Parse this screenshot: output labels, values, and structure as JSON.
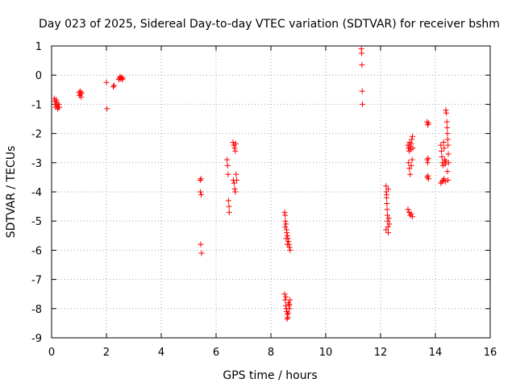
{
  "chart_data": {
    "type": "scatter",
    "title": "Day 023 of 2025, Sidereal Day-to-day VTEC variation (SDTVAR) for receiver bshm",
    "xlabel": "GPS time / hours",
    "ylabel": "SDTVAR / TECUs",
    "xlim": [
      0,
      16
    ],
    "ylim": [
      -9,
      1
    ],
    "xticks": [
      "0",
      "2",
      "4",
      "6",
      "8",
      "10",
      "12",
      "14",
      "16"
    ],
    "yticks": [
      "1",
      "0",
      "-1",
      "-2",
      "-3",
      "-4",
      "-5",
      "-6",
      "-7",
      "-8",
      "-9"
    ],
    "grid": true,
    "marker": "plus",
    "color": "#ff0000",
    "points": [
      [
        0.1,
        -0.8
      ],
      [
        0.12,
        -0.9
      ],
      [
        0.14,
        -1.0
      ],
      [
        0.15,
        -1.1
      ],
      [
        0.17,
        -0.85
      ],
      [
        0.19,
        -1.05
      ],
      [
        0.2,
        -0.95
      ],
      [
        0.22,
        -1.15
      ],
      [
        0.24,
        -1.1
      ],
      [
        0.26,
        -1.0
      ],
      [
        0.28,
        -1.1
      ],
      [
        1.0,
        -0.6
      ],
      [
        1.02,
        -0.7
      ],
      [
        1.04,
        -0.55
      ],
      [
        1.06,
        -0.65
      ],
      [
        1.08,
        -0.75
      ],
      [
        1.1,
        -0.6
      ],
      [
        2.0,
        -0.25
      ],
      [
        2.02,
        -1.15
      ],
      [
        2.25,
        -0.4
      ],
      [
        2.28,
        -0.35
      ],
      [
        2.45,
        -0.15
      ],
      [
        2.48,
        -0.1
      ],
      [
        2.5,
        -0.05
      ],
      [
        2.52,
        -0.12
      ],
      [
        2.55,
        -0.08
      ],
      [
        2.58,
        -0.15
      ],
      [
        2.6,
        -0.1
      ],
      [
        5.42,
        -3.6
      ],
      [
        5.45,
        -3.55
      ],
      [
        5.43,
        -4.0
      ],
      [
        5.46,
        -4.1
      ],
      [
        5.44,
        -5.8
      ],
      [
        5.47,
        -6.1
      ],
      [
        6.4,
        -2.9
      ],
      [
        6.42,
        -3.1
      ],
      [
        6.44,
        -3.4
      ],
      [
        6.45,
        -4.3
      ],
      [
        6.47,
        -4.5
      ],
      [
        6.48,
        -4.7
      ],
      [
        6.62,
        -2.3
      ],
      [
        6.65,
        -2.4
      ],
      [
        6.68,
        -2.5
      ],
      [
        6.7,
        -2.6
      ],
      [
        6.72,
        -2.35
      ],
      [
        6.63,
        -3.6
      ],
      [
        6.66,
        -3.7
      ],
      [
        6.68,
        -3.9
      ],
      [
        6.7,
        -4.0
      ],
      [
        6.73,
        -3.4
      ],
      [
        6.75,
        -3.6
      ],
      [
        8.5,
        -4.7
      ],
      [
        8.52,
        -4.8
      ],
      [
        8.53,
        -5.0
      ],
      [
        8.55,
        -5.1
      ],
      [
        8.57,
        -5.3
      ],
      [
        8.58,
        -5.4
      ],
      [
        8.6,
        -5.5
      ],
      [
        8.62,
        -5.6
      ],
      [
        8.64,
        -5.7
      ],
      [
        8.66,
        -5.8
      ],
      [
        8.68,
        -5.9
      ],
      [
        8.7,
        -6.0
      ],
      [
        8.52,
        -5.2
      ],
      [
        8.56,
        -5.6
      ],
      [
        8.6,
        -5.8
      ],
      [
        8.5,
        -7.5
      ],
      [
        8.52,
        -7.7
      ],
      [
        8.54,
        -7.9
      ],
      [
        8.56,
        -8.0
      ],
      [
        8.58,
        -8.1
      ],
      [
        8.6,
        -8.2
      ],
      [
        8.62,
        -8.3
      ],
      [
        8.64,
        -7.8
      ],
      [
        8.66,
        -7.9
      ],
      [
        8.68,
        -8.0
      ],
      [
        8.7,
        -7.7
      ],
      [
        8.55,
        -7.6
      ],
      [
        8.59,
        -8.35
      ],
      [
        8.63,
        -8.15
      ],
      [
        8.67,
        -7.85
      ],
      [
        11.3,
        0.9
      ],
      [
        11.31,
        0.75
      ],
      [
        11.32,
        0.35
      ],
      [
        11.33,
        -0.55
      ],
      [
        11.34,
        -1.0
      ],
      [
        12.2,
        -3.8
      ],
      [
        12.21,
        -4.0
      ],
      [
        12.22,
        -4.2
      ],
      [
        12.23,
        -4.4
      ],
      [
        12.24,
        -4.6
      ],
      [
        12.25,
        -4.8
      ],
      [
        12.26,
        -5.0
      ],
      [
        12.27,
        -5.2
      ],
      [
        12.28,
        -5.4
      ],
      [
        12.3,
        -4.9
      ],
      [
        12.32,
        -5.1
      ],
      [
        12.2,
        -5.3
      ],
      [
        12.22,
        -4.1
      ],
      [
        12.28,
        -3.9
      ],
      [
        13.0,
        -2.4
      ],
      [
        13.02,
        -2.5
      ],
      [
        13.04,
        -2.6
      ],
      [
        13.06,
        -2.3
      ],
      [
        13.08,
        -2.45
      ],
      [
        13.1,
        -2.55
      ],
      [
        13.12,
        -2.35
      ],
      [
        13.14,
        -2.2
      ],
      [
        13.16,
        -2.1
      ],
      [
        13.18,
        -2.5
      ],
      [
        13.02,
        -3.0
      ],
      [
        13.05,
        -3.2
      ],
      [
        13.08,
        -3.4
      ],
      [
        13.12,
        -3.1
      ],
      [
        13.15,
        -2.9
      ],
      [
        13.0,
        -4.6
      ],
      [
        13.04,
        -4.7
      ],
      [
        13.08,
        -4.8
      ],
      [
        13.12,
        -4.75
      ],
      [
        13.16,
        -4.85
      ],
      [
        13.7,
        -1.6
      ],
      [
        13.72,
        -1.7
      ],
      [
        13.75,
        -1.65
      ],
      [
        13.7,
        -2.9
      ],
      [
        13.72,
        -3.0
      ],
      [
        13.74,
        -2.85
      ],
      [
        13.7,
        -3.5
      ],
      [
        13.73,
        -3.45
      ],
      [
        13.75,
        -3.55
      ],
      [
        14.2,
        -2.4
      ],
      [
        14.22,
        -2.6
      ],
      [
        14.24,
        -2.8
      ],
      [
        14.26,
        -3.0
      ],
      [
        14.28,
        -3.1
      ],
      [
        14.3,
        -2.3
      ],
      [
        14.32,
        -2.5
      ],
      [
        14.34,
        -2.9
      ],
      [
        14.36,
        -3.05
      ],
      [
        14.38,
        -2.95
      ],
      [
        14.2,
        -3.7
      ],
      [
        14.24,
        -3.65
      ],
      [
        14.28,
        -3.6
      ],
      [
        14.32,
        -3.55
      ],
      [
        14.36,
        -3.65
      ],
      [
        14.38,
        -1.2
      ],
      [
        14.4,
        -1.3
      ],
      [
        14.42,
        -1.6
      ],
      [
        14.43,
        -1.8
      ],
      [
        14.44,
        -2.0
      ],
      [
        14.45,
        -2.2
      ],
      [
        14.46,
        -2.4
      ],
      [
        14.47,
        -2.7
      ],
      [
        14.48,
        -3.0
      ],
      [
        14.44,
        -3.3
      ],
      [
        14.46,
        -3.6
      ]
    ]
  }
}
